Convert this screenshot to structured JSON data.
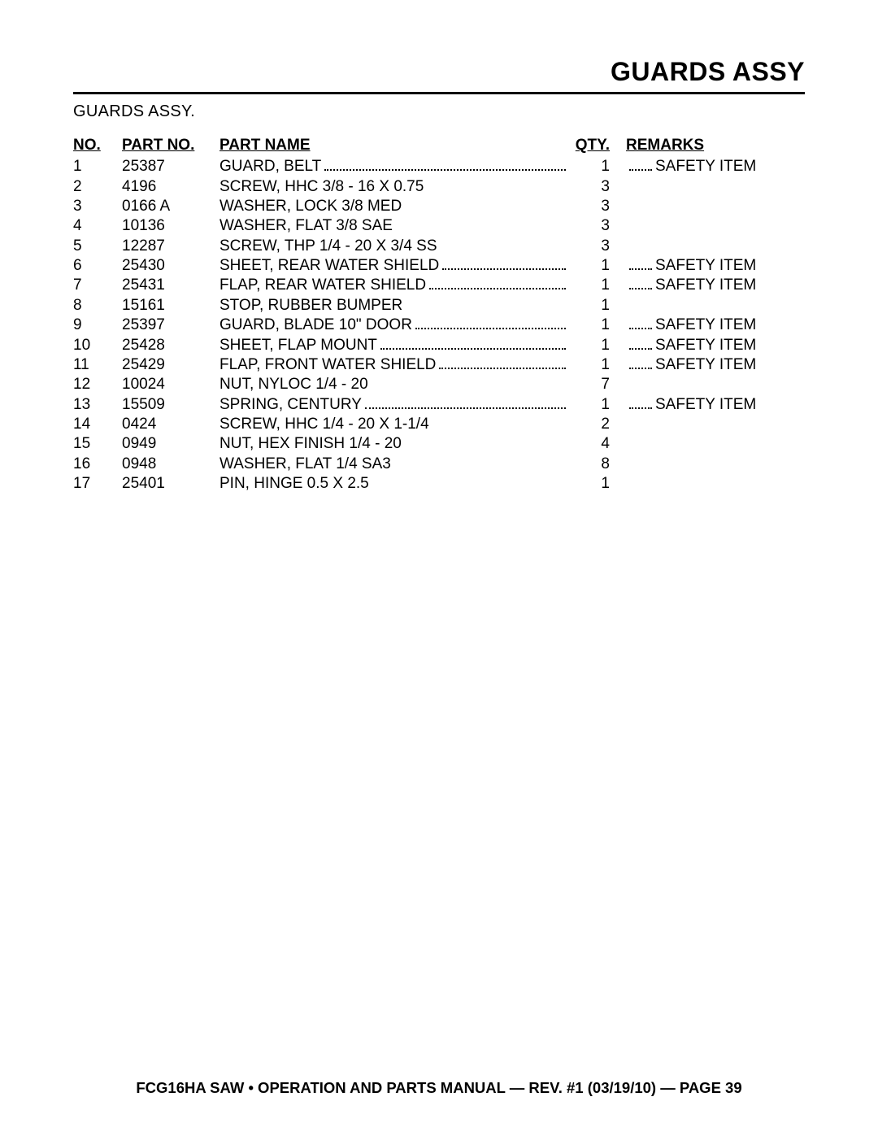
{
  "title": "GUARDS ASSY",
  "section_label": "GUARDS ASSY.",
  "columns": {
    "no": "NO.",
    "part_no": "PART NO.",
    "part_name": "PART NAME",
    "qty": "QTY.",
    "remarks": "REMARKS"
  },
  "safety_label": "SAFETY ITEM",
  "rows": [
    {
      "no": "1",
      "part_no": "25387",
      "name": "GUARD, BELT",
      "qty": "1",
      "safety": true
    },
    {
      "no": "2",
      "part_no": "4196",
      "name": "SCREW, HHC 3/8 - 16 X 0.75",
      "qty": "3",
      "safety": false
    },
    {
      "no": "3",
      "part_no": "0166 A",
      "name": "WASHER, LOCK 3/8 MED",
      "qty": "3",
      "safety": false
    },
    {
      "no": "4",
      "part_no": "10136",
      "name": "WASHER, FLAT 3/8 SAE",
      "qty": "3",
      "safety": false
    },
    {
      "no": "5",
      "part_no": "12287",
      "name": "SCREW, THP 1/4 - 20 X 3/4 SS",
      "qty": "3",
      "safety": false
    },
    {
      "no": "6",
      "part_no": "25430",
      "name": "SHEET, REAR WATER SHIELD",
      "qty": "1",
      "safety": true
    },
    {
      "no": "7",
      "part_no": "25431",
      "name": "FLAP, REAR WATER SHIELD",
      "qty": "1",
      "safety": true
    },
    {
      "no": "8",
      "part_no": "15161",
      "name": "STOP, RUBBER BUMPER",
      "qty": "1",
      "safety": false
    },
    {
      "no": "9",
      "part_no": "25397",
      "name": "GUARD, BLADE 10\" DOOR",
      "qty": "1",
      "safety": true
    },
    {
      "no": "10",
      "part_no": "25428",
      "name": "SHEET, FLAP MOUNT",
      "qty": "1",
      "safety": true
    },
    {
      "no": "11",
      "part_no": "25429",
      "name": "FLAP, FRONT WATER SHIELD",
      "qty": "1",
      "safety": true
    },
    {
      "no": "12",
      "part_no": "10024",
      "name": "NUT, NYLOC 1/4 - 20",
      "qty": "7",
      "safety": false
    },
    {
      "no": "13",
      "part_no": "15509",
      "name": "SPRING, CENTURY",
      "qty": "1",
      "safety": true
    },
    {
      "no": "14",
      "part_no": "0424",
      "name": "SCREW, HHC 1/4 - 20 X 1-1/4",
      "qty": "2",
      "safety": false
    },
    {
      "no": "15",
      "part_no": "0949",
      "name": "NUT, HEX FINISH 1/4 - 20",
      "qty": "4",
      "safety": false
    },
    {
      "no": "16",
      "part_no": "0948",
      "name": "WASHER, FLAT 1/4 SA3",
      "qty": "8",
      "safety": false
    },
    {
      "no": "17",
      "part_no": "25401",
      "name": "PIN, HINGE 0.5 X 2.5",
      "qty": "1",
      "safety": false
    }
  ],
  "footer": "FCG16HA SAW • OPERATION AND PARTS MANUAL — REV. #1 (03/19/10) — PAGE 39"
}
